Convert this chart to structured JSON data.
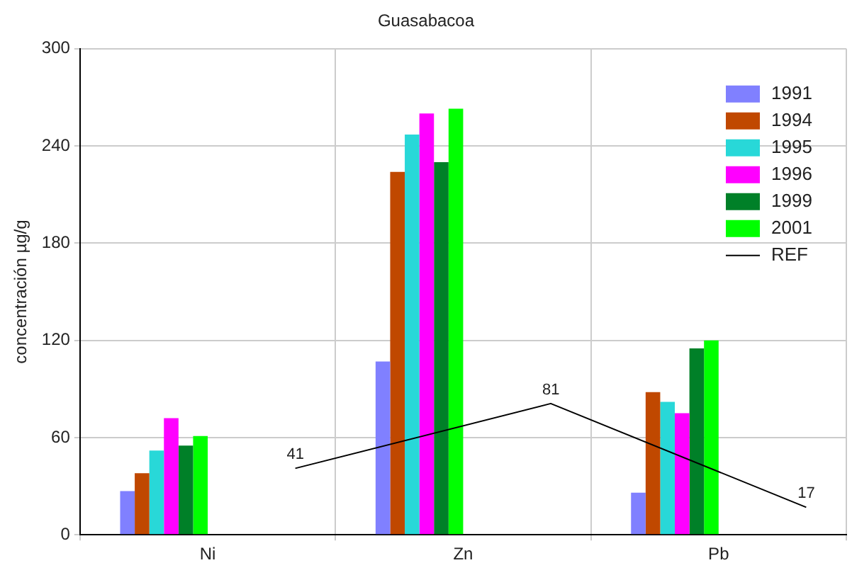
{
  "chart_data": {
    "type": "bar",
    "title": "Guasabacoa",
    "ylabel": "concentración µg/g",
    "categories": [
      "Ni",
      "Zn",
      "Pb"
    ],
    "series": [
      {
        "name": "1991",
        "color": "#8080ff",
        "values": [
          27,
          107,
          26
        ]
      },
      {
        "name": "1994",
        "color": "#c04800",
        "values": [
          38,
          224,
          88
        ]
      },
      {
        "name": "1995",
        "color": "#28d8d8",
        "values": [
          52,
          247,
          82
        ]
      },
      {
        "name": "1996",
        "color": "#ff00ff",
        "values": [
          72,
          260,
          75
        ]
      },
      {
        "name": "1999",
        "color": "#008028",
        "values": [
          55,
          230,
          115
        ]
      },
      {
        "name": "2001",
        "color": "#00ff00",
        "values": [
          61,
          263,
          120
        ]
      },
      {
        "name": "REF",
        "type": "line",
        "color": "#000000",
        "values": [
          41,
          81,
          17
        ],
        "value_labels": [
          "41",
          "81",
          "17"
        ]
      }
    ],
    "ylim": [
      0,
      300
    ],
    "yticks": [
      0,
      60,
      120,
      180,
      240,
      300
    ],
    "grid": true,
    "legend": "top right",
    "marker": "none"
  }
}
